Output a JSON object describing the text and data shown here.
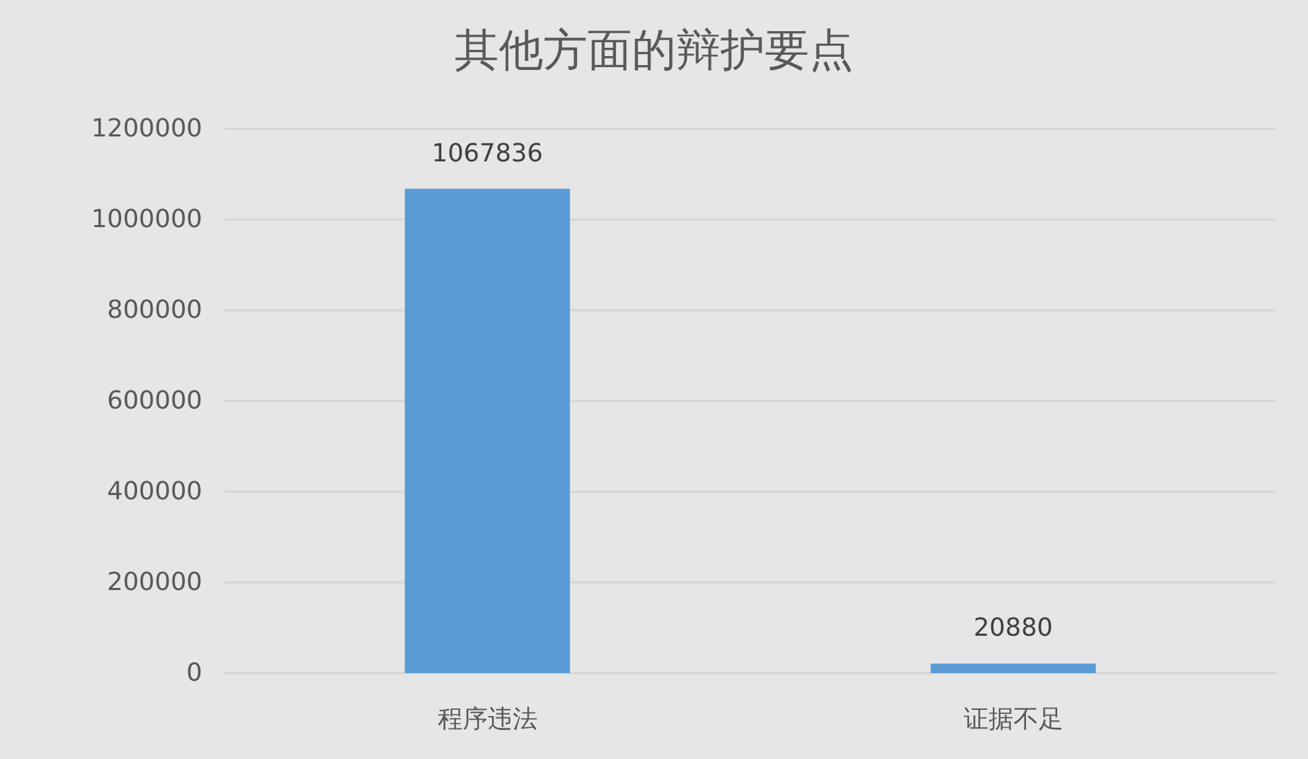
{
  "chart_data": {
    "type": "bar",
    "title": "其他方面的辩护要点",
    "categories": [
      "程序违法",
      "证据不足"
    ],
    "values": [
      1067836,
      20880
    ],
    "color": "#5b9bd5",
    "ylim": [
      0,
      1200000
    ],
    "yticks": [
      0,
      200000,
      400000,
      600000,
      800000,
      1000000,
      1200000
    ],
    "grid": "y",
    "data_labels": true
  }
}
